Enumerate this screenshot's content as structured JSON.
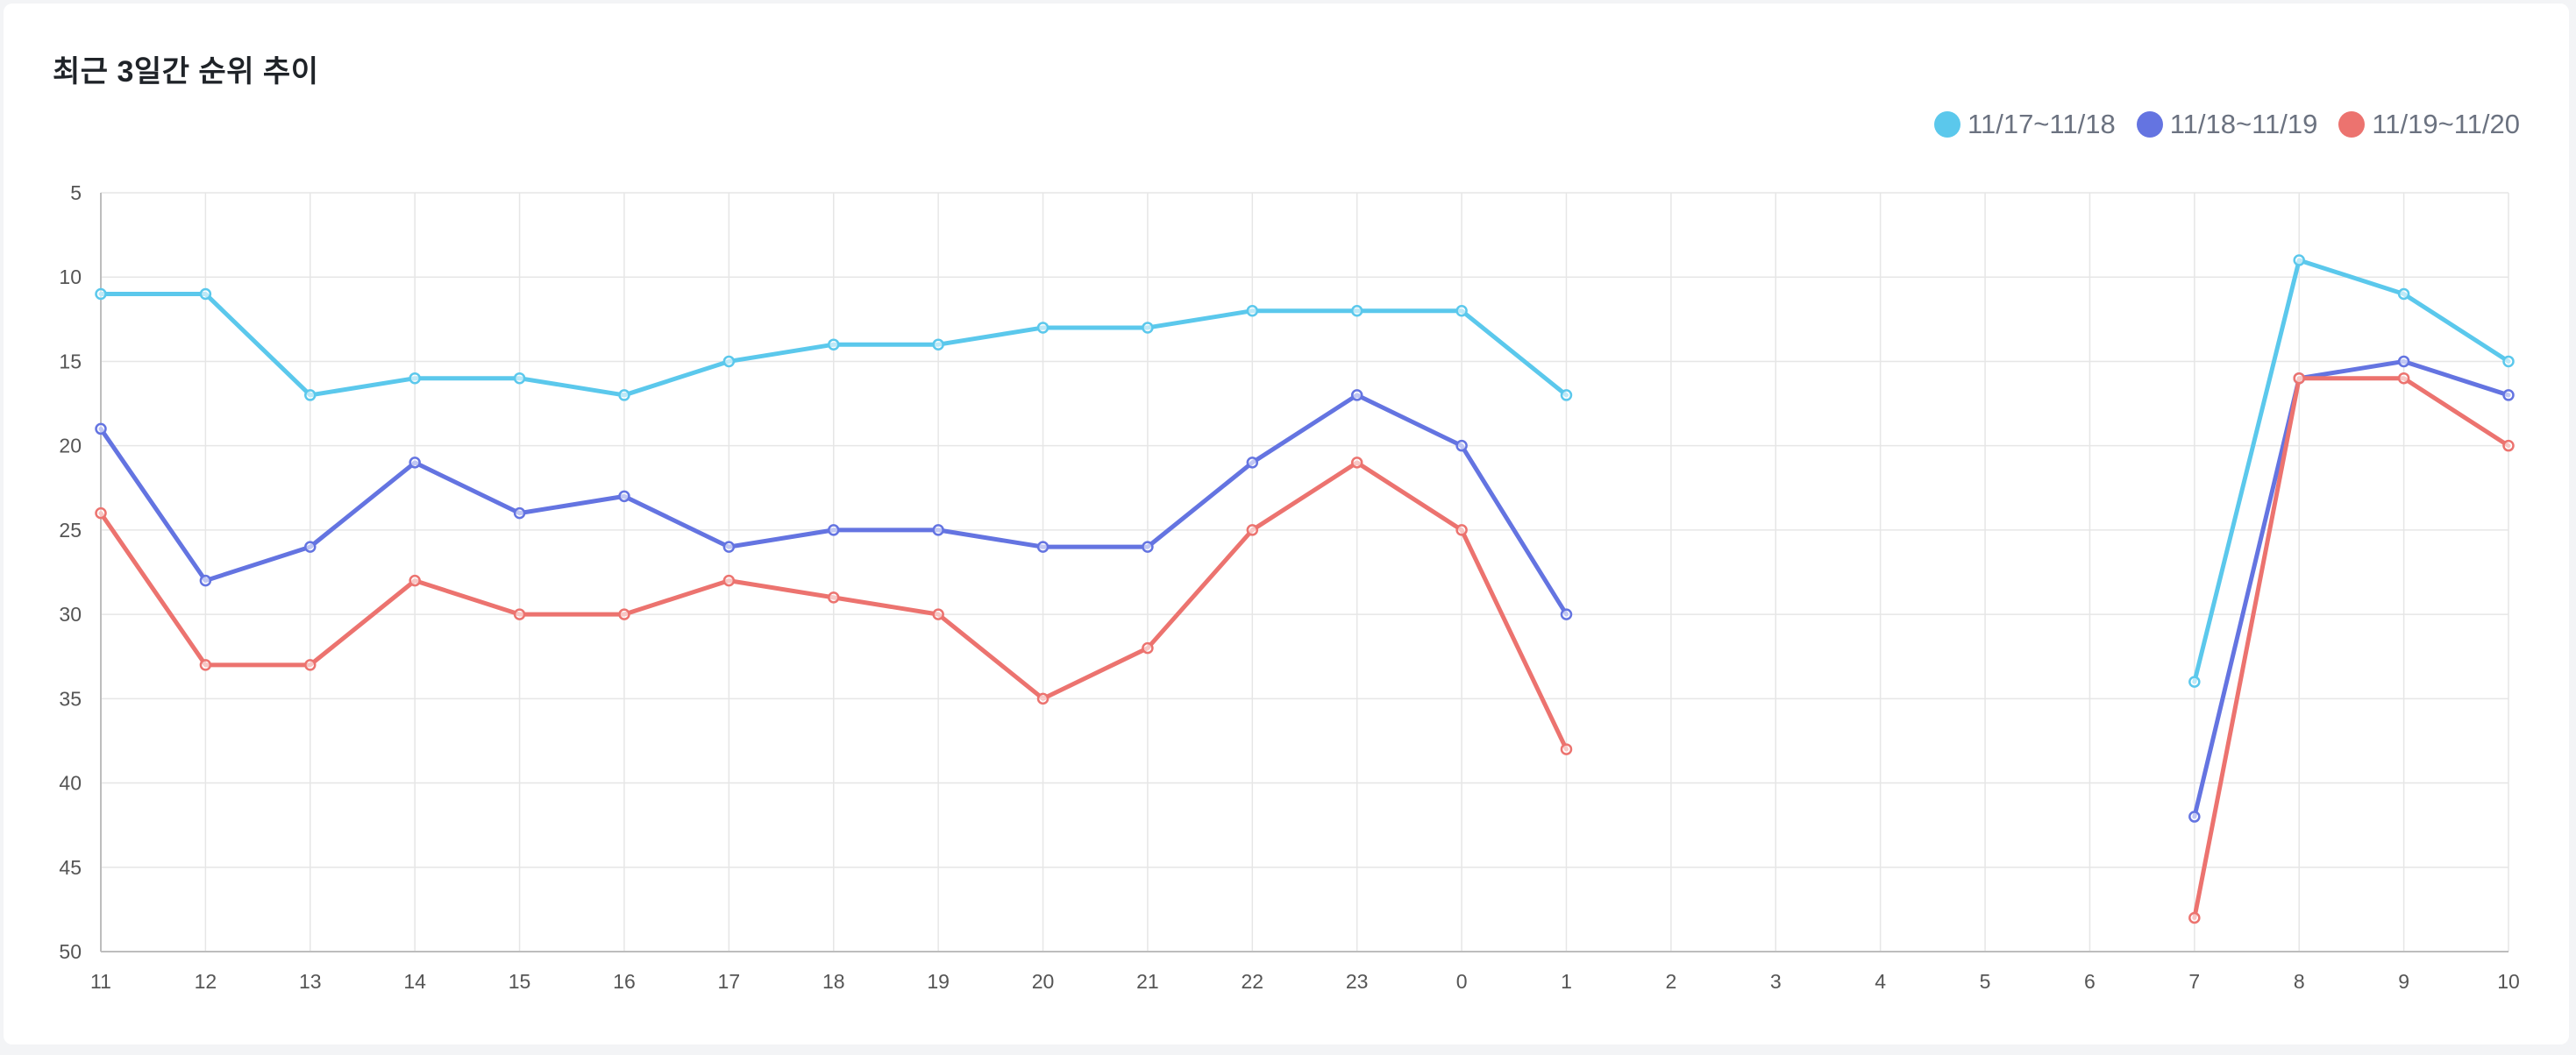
{
  "title": "최근 3일간 순위 추이",
  "legend": [
    {
      "label": "11/17~11/18",
      "color": "#5bc8ec"
    },
    {
      "label": "11/18~11/19",
      "color": "#6474e1"
    },
    {
      "label": "11/19~11/20",
      "color": "#ec736f"
    }
  ],
  "chart_data": {
    "type": "line",
    "title": "최근 3일간 순위 추이",
    "xlabel": "",
    "ylabel": "",
    "categories": [
      "11",
      "12",
      "13",
      "14",
      "15",
      "16",
      "17",
      "18",
      "19",
      "20",
      "21",
      "22",
      "23",
      "0",
      "1",
      "2",
      "3",
      "4",
      "5",
      "6",
      "7",
      "8",
      "9",
      "10"
    ],
    "ylim": [
      5,
      50
    ],
    "y_reversed": true,
    "yticks": [
      5,
      10,
      15,
      20,
      25,
      30,
      35,
      40,
      45,
      50
    ],
    "grid": true,
    "legend_position": "top-right",
    "series": [
      {
        "name": "11/17~11/18",
        "color": "#5bc8ec",
        "values": [
          11,
          11,
          17,
          16,
          16,
          17,
          15,
          14,
          14,
          13,
          13,
          12,
          12,
          12,
          17,
          null,
          null,
          null,
          null,
          null,
          34,
          9,
          11,
          15
        ]
      },
      {
        "name": "11/18~11/19",
        "color": "#6474e1",
        "values": [
          19,
          28,
          26,
          21,
          24,
          23,
          26,
          25,
          25,
          26,
          26,
          21,
          17,
          20,
          30,
          null,
          null,
          null,
          null,
          null,
          42,
          16,
          15,
          17
        ]
      },
      {
        "name": "11/19~11/20",
        "color": "#ec736f",
        "values": [
          24,
          33,
          33,
          28,
          30,
          30,
          28,
          29,
          30,
          35,
          32,
          25,
          21,
          25,
          38,
          null,
          null,
          null,
          null,
          null,
          48,
          16,
          16,
          20
        ]
      }
    ]
  }
}
